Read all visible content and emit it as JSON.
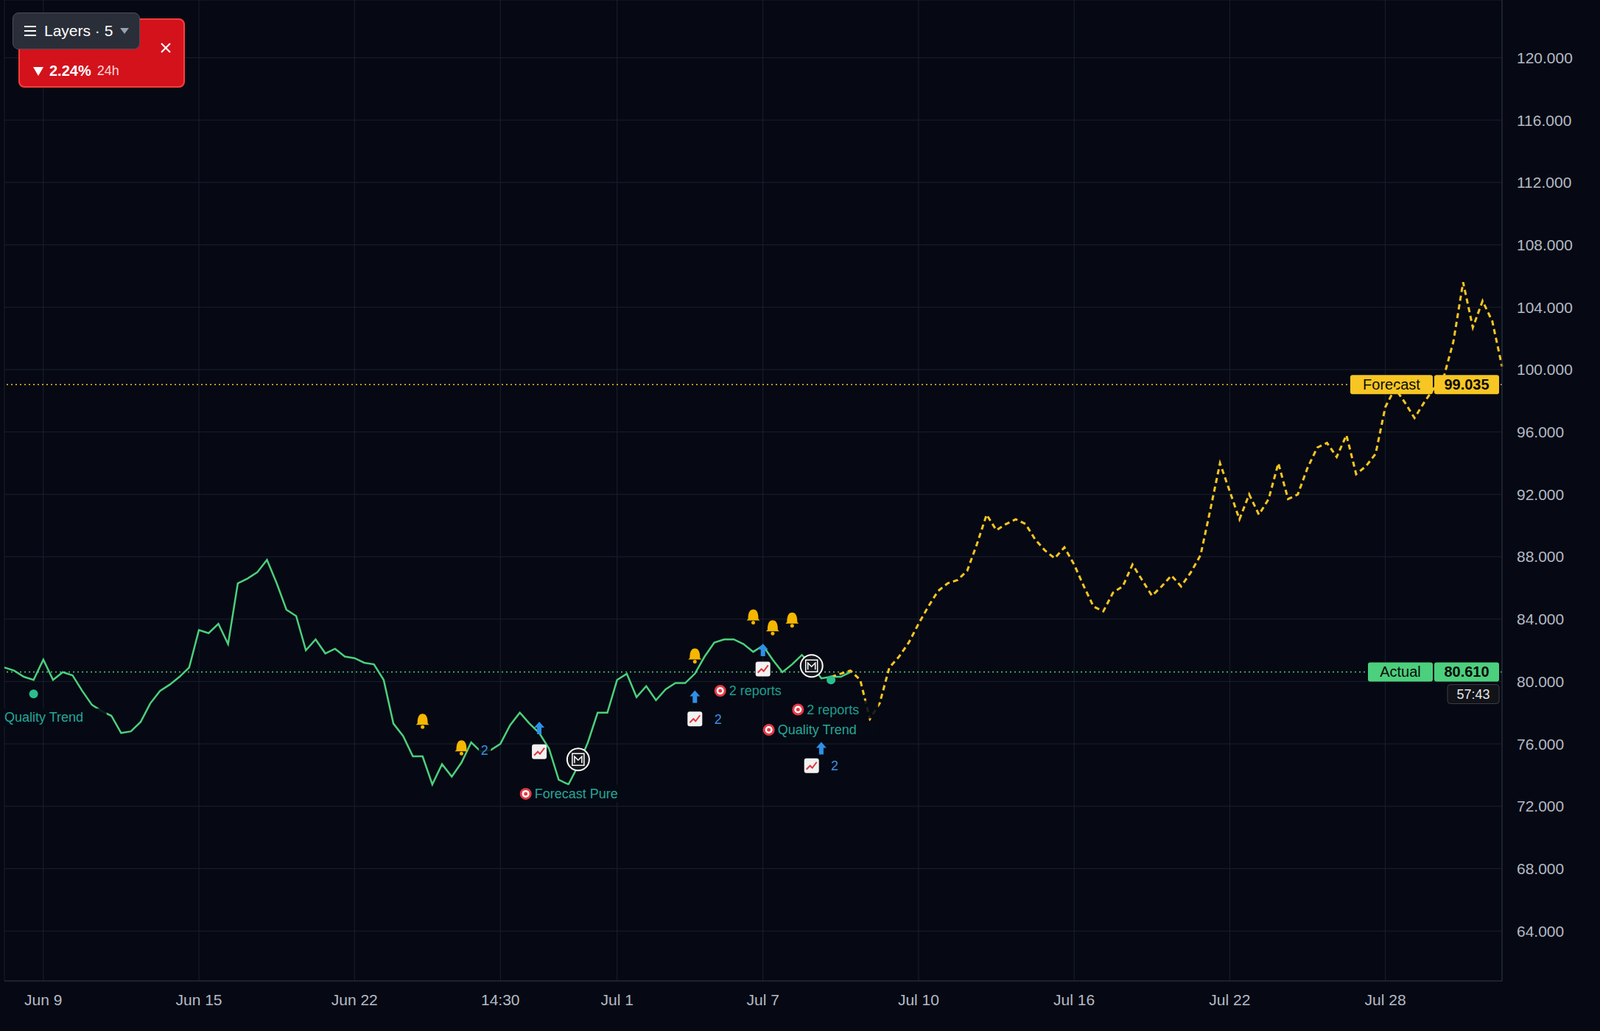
{
  "chart_data": {
    "type": "line",
    "categories": [
      null,
      null,
      null,
      null,
      "Jun 9",
      null,
      null,
      null,
      null,
      null,
      null,
      null,
      null,
      null,
      null,
      null,
      null,
      null,
      null,
      null,
      "Jun 15",
      null,
      null,
      null,
      null,
      null,
      null,
      null,
      null,
      null,
      null,
      null,
      null,
      null,
      null,
      null,
      "Jun 22",
      null,
      null,
      null,
      null,
      null,
      null,
      null,
      null,
      null,
      null,
      null,
      null,
      null,
      null,
      "14:30",
      null,
      null,
      null,
      null,
      null,
      null,
      null,
      null,
      null,
      null,
      null,
      "Jul 1",
      null,
      null,
      null,
      null,
      null,
      null,
      null,
      null,
      null,
      null,
      null,
      null,
      null,
      null,
      "Jul 7",
      null,
      null,
      null,
      null,
      null,
      null,
      null,
      null,
      null,
      null,
      null,
      null,
      null,
      null,
      null,
      "Jul 10",
      null,
      null,
      null,
      null,
      null,
      null,
      null,
      null,
      null,
      null,
      null,
      null,
      null,
      null,
      null,
      "Jul 16",
      null,
      null,
      null,
      null,
      null,
      null,
      null,
      null,
      null,
      null,
      null,
      null,
      null,
      null,
      null,
      "Jul 22",
      null,
      null,
      null,
      null,
      null,
      null,
      null,
      null,
      null,
      null,
      null,
      null,
      null,
      null,
      null,
      "Jul 28",
      null,
      null,
      null,
      null,
      null,
      null,
      null,
      null,
      null,
      null,
      null,
      null
    ],
    "series": [
      {
        "name": "Actual",
        "color": "#4cd07d",
        "line_style": "solid",
        "price_line": 80.61,
        "price_label": "80.610",
        "values": [
          80.9,
          80.7,
          80.3,
          80.1,
          81.4,
          80.1,
          80.6,
          80.4,
          79.4,
          78.5,
          78.1,
          77.8,
          76.7,
          76.8,
          77.4,
          78.6,
          79.4,
          79.8,
          80.3,
          80.9,
          83.3,
          83.1,
          83.7,
          82.4,
          86.3,
          86.6,
          87.0,
          87.8,
          86.3,
          84.6,
          84.2,
          82.0,
          82.7,
          81.8,
          82.1,
          81.6,
          81.5,
          81.2,
          81.1,
          80.1,
          77.3,
          76.5,
          75.2,
          75.2,
          73.4,
          74.7,
          73.9,
          74.8,
          76.1,
          75.5,
          75.6,
          76.0,
          77.2,
          78.0,
          77.3,
          76.7,
          75.7,
          73.7,
          73.4,
          74.6,
          76.1,
          78.0,
          78.0,
          80.1,
          80.5,
          79.0,
          79.7,
          78.8,
          79.5,
          79.9,
          79.9,
          80.5,
          81.6,
          82.5,
          82.7,
          82.7,
          82.4,
          81.9,
          82.3,
          81.4,
          80.6,
          81.1,
          81.7,
          81.1,
          80.2,
          80.3,
          80.3,
          80.6,
          null,
          null,
          null,
          null,
          null,
          null,
          null,
          null,
          null,
          null,
          null,
          null,
          null,
          null,
          null,
          null,
          null,
          null,
          null,
          null,
          null,
          null,
          null,
          null,
          null,
          null,
          null,
          null,
          null,
          null,
          null,
          null,
          null,
          null,
          null,
          null,
          null,
          null,
          null,
          null,
          null,
          null,
          null,
          null,
          null,
          null,
          null,
          null,
          null,
          null,
          null,
          null,
          null,
          null,
          null,
          null,
          null,
          null,
          null,
          null,
          null,
          null,
          null,
          null,
          null,
          null,
          null
        ]
      },
      {
        "name": "Forecast",
        "color": "#f7c623",
        "line_style": "dashed",
        "price_line": 99.035,
        "price_label": "99.035",
        "values": [
          null,
          null,
          null,
          null,
          null,
          null,
          null,
          null,
          null,
          null,
          null,
          null,
          null,
          null,
          null,
          null,
          null,
          null,
          null,
          null,
          null,
          null,
          null,
          null,
          null,
          null,
          null,
          null,
          null,
          null,
          null,
          null,
          null,
          null,
          null,
          null,
          null,
          null,
          null,
          null,
          null,
          null,
          null,
          null,
          null,
          null,
          null,
          null,
          null,
          null,
          null,
          null,
          null,
          null,
          null,
          null,
          null,
          null,
          null,
          null,
          null,
          null,
          null,
          null,
          null,
          null,
          null,
          null,
          null,
          null,
          null,
          null,
          null,
          null,
          null,
          null,
          null,
          null,
          null,
          null,
          null,
          null,
          null,
          null,
          null,
          80.3,
          80.5,
          80.7,
          80.1,
          77.6,
          78.6,
          80.9,
          81.6,
          82.5,
          83.7,
          84.8,
          85.8,
          86.3,
          86.5,
          87.1,
          88.8,
          90.7,
          89.7,
          90.1,
          90.4,
          90.1,
          89.1,
          88.4,
          87.9,
          88.6,
          87.5,
          86.1,
          84.8,
          84.5,
          85.7,
          86.1,
          87.5,
          86.5,
          85.5,
          86.1,
          86.8,
          86.1,
          87.0,
          88.1,
          91.0,
          94.0,
          92.2,
          90.4,
          92.0,
          90.7,
          91.7,
          94.0,
          91.7,
          92.0,
          93.7,
          95.0,
          95.3,
          94.4,
          95.8,
          93.3,
          93.8,
          94.6,
          97.6,
          98.8,
          97.9,
          96.9,
          97.9,
          98.8,
          99.5,
          101.8,
          105.6,
          102.7,
          104.4,
          103.1,
          100.2
        ]
      }
    ],
    "ylim": [
      60.8,
      123.7
    ],
    "yticks": [
      {
        "value": 64,
        "label": "64.000"
      },
      {
        "value": 68,
        "label": "68.000"
      },
      {
        "value": 72,
        "label": "72.000"
      },
      {
        "value": 76,
        "label": "76.000"
      },
      {
        "value": 80,
        "label": "80.000"
      },
      {
        "value": 84,
        "label": "84.000"
      },
      {
        "value": 88,
        "label": "88.000"
      },
      {
        "value": 92,
        "label": "92.000"
      },
      {
        "value": 96,
        "label": "96.000"
      },
      {
        "value": 100,
        "label": "100.000"
      },
      {
        "value": 104,
        "label": "104.000"
      },
      {
        "value": 108,
        "label": "108.000"
      },
      {
        "value": 112,
        "label": "112.000"
      },
      {
        "value": 116,
        "label": "116.000"
      },
      {
        "value": 120,
        "label": "120.000"
      }
    ],
    "grid": true,
    "countdown": "57:43",
    "header": {
      "layers": "Layers · 5",
      "change": "2.24%",
      "period": "24h"
    },
    "annotations": [
      {
        "text": "Quality Trend",
        "x": 0,
        "y": 77.7,
        "color": "#26a69a"
      },
      {
        "text": "Forecast Pure",
        "x": 53,
        "y": 72.8,
        "color": "#26a69a",
        "marker": "target"
      },
      {
        "text": "2 reports",
        "x": 73,
        "y": 79.4,
        "color": "#1f9e8f",
        "marker": "target"
      },
      {
        "text": "2 reports",
        "x": 81,
        "y": 78.2,
        "color": "#1f9e8f",
        "marker": "target"
      },
      {
        "text": "Quality Trend",
        "x": 78,
        "y": 76.9,
        "color": "#26a69a",
        "marker": "target"
      },
      {
        "text": "2",
        "x": 49,
        "y": 75.6,
        "color": "#3d8fe0"
      },
      {
        "text": "2",
        "x": 73,
        "y": 77.6,
        "color": "#3d8fe0"
      },
      {
        "text": "2",
        "x": 85,
        "y": 74.6,
        "color": "#3d8fe0"
      }
    ],
    "markers": [
      {
        "kind": "bell",
        "x": 43,
        "y": 77.5
      },
      {
        "kind": "bell",
        "x": 47,
        "y": 75.8
      },
      {
        "kind": "bell",
        "x": 71,
        "y": 81.7
      },
      {
        "kind": "bell",
        "x": 77,
        "y": 84.2
      },
      {
        "kind": "bell",
        "x": 79,
        "y": 83.5
      },
      {
        "kind": "bell",
        "x": 81,
        "y": 84.0
      },
      {
        "kind": "arrow",
        "x": 55,
        "y": 77.0
      },
      {
        "kind": "arrow",
        "x": 71,
        "y": 79.0
      },
      {
        "kind": "arrow",
        "x": 78,
        "y": 82.0
      },
      {
        "kind": "arrow",
        "x": 84,
        "y": 75.7
      },
      {
        "kind": "chart",
        "x": 55,
        "y": 75.5
      },
      {
        "kind": "chart",
        "x": 71,
        "y": 77.6
      },
      {
        "kind": "chart",
        "x": 78,
        "y": 80.8
      },
      {
        "kind": "chart",
        "x": 83,
        "y": 74.6
      },
      {
        "kind": "logo",
        "x": 59,
        "y": 75.0
      },
      {
        "kind": "logo",
        "x": 83,
        "y": 81.0
      },
      {
        "kind": "dot",
        "x": 3,
        "y": 79.2
      },
      {
        "kind": "dot",
        "x": 85,
        "y": 80.1
      }
    ]
  }
}
